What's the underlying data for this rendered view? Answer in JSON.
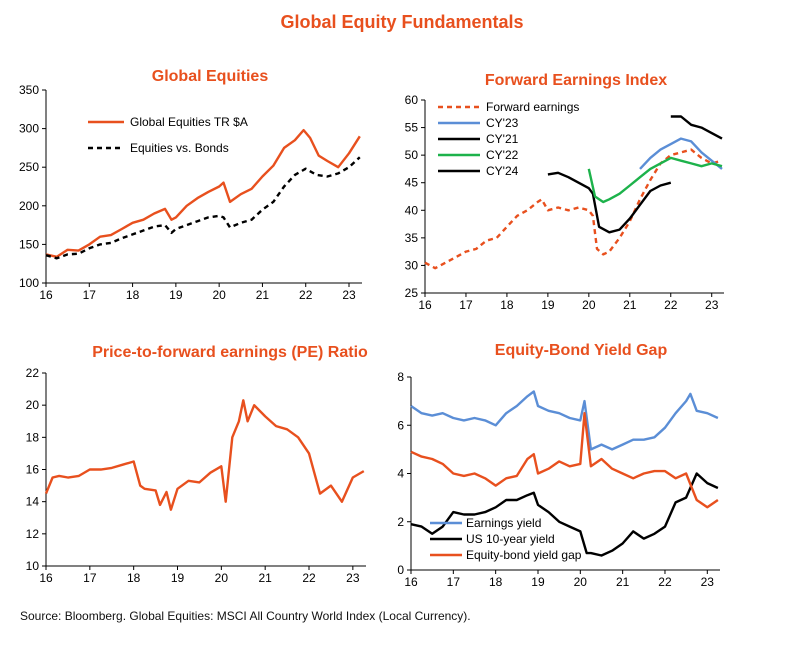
{
  "page": {
    "title": "Global Equity Fundamentals",
    "source": "Source: Bloomberg. Global Equities: MSCI All Country World Index (Local Currency)."
  },
  "colors": {
    "orange": "#E8501E",
    "black": "#000000",
    "blue": "#5B8ED6",
    "green": "#1DB24B"
  },
  "chart_data": [
    {
      "type": "line",
      "title": "Global Equities",
      "xlabel": "",
      "ylabel": "",
      "xlim": [
        2016,
        2023.3
      ],
      "ylim": [
        100,
        350
      ],
      "xticks": [
        16,
        17,
        18,
        19,
        20,
        21,
        22,
        23
      ],
      "yticks": [
        100,
        150,
        200,
        250,
        300,
        350
      ],
      "grid": false,
      "legend": "top-left",
      "series": [
        {
          "name": "Global Equities TR $A",
          "color": "#E8501E",
          "style": "solid",
          "x": [
            2016.0,
            2016.25,
            2016.5,
            2016.75,
            2017.0,
            2017.25,
            2017.5,
            2017.75,
            2018.0,
            2018.25,
            2018.5,
            2018.75,
            2018.9,
            2019.0,
            2019.25,
            2019.5,
            2019.75,
            2020.0,
            2020.1,
            2020.25,
            2020.5,
            2020.75,
            2021.0,
            2021.25,
            2021.5,
            2021.75,
            2021.95,
            2022.1,
            2022.3,
            2022.5,
            2022.75,
            2023.0,
            2023.25
          ],
          "y": [
            137,
            134,
            143,
            142,
            150,
            160,
            162,
            170,
            178,
            182,
            190,
            196,
            182,
            185,
            200,
            210,
            218,
            225,
            230,
            205,
            215,
            222,
            238,
            252,
            275,
            285,
            298,
            288,
            265,
            258,
            250,
            268,
            290
          ]
        },
        {
          "name": "Equities vs. Bonds",
          "color": "#000000",
          "style": "dashed",
          "x": [
            2016.0,
            2016.25,
            2016.5,
            2016.75,
            2017.0,
            2017.25,
            2017.5,
            2017.75,
            2018.0,
            2018.25,
            2018.5,
            2018.75,
            2018.9,
            2019.0,
            2019.25,
            2019.5,
            2019.75,
            2020.0,
            2020.1,
            2020.25,
            2020.5,
            2020.75,
            2021.0,
            2021.25,
            2021.5,
            2021.75,
            2022.0,
            2022.25,
            2022.5,
            2022.75,
            2023.0,
            2023.25
          ],
          "y": [
            136,
            132,
            137,
            138,
            145,
            150,
            152,
            158,
            163,
            168,
            173,
            175,
            165,
            170,
            175,
            180,
            185,
            187,
            185,
            172,
            178,
            182,
            195,
            205,
            225,
            240,
            248,
            240,
            238,
            242,
            250,
            263
          ]
        }
      ]
    },
    {
      "type": "line",
      "title": "Forward Earnings Index",
      "xlabel": "",
      "ylabel": "",
      "xlim": [
        2016,
        2023.3
      ],
      "ylim": [
        25,
        60
      ],
      "xticks": [
        16,
        17,
        18,
        19,
        20,
        21,
        22,
        23
      ],
      "yticks": [
        25,
        30,
        35,
        40,
        45,
        50,
        55,
        60
      ],
      "grid": false,
      "legend": "top-left",
      "series": [
        {
          "name": "Forward earnings",
          "color": "#E8501E",
          "style": "dashed",
          "x": [
            2016.0,
            2016.25,
            2016.5,
            2016.75,
            2017.0,
            2017.25,
            2017.5,
            2017.75,
            2018.0,
            2018.25,
            2018.5,
            2018.75,
            2018.85,
            2019.0,
            2019.25,
            2019.5,
            2019.75,
            2020.0,
            2020.1,
            2020.2,
            2020.35,
            2020.5,
            2020.75,
            2021.0,
            2021.25,
            2021.5,
            2021.75,
            2022.0,
            2022.25,
            2022.5,
            2022.75,
            2023.0,
            2023.25
          ],
          "y": [
            30.5,
            29.5,
            30.5,
            31.5,
            32.5,
            33.0,
            34.5,
            35.0,
            37.0,
            39.0,
            40.0,
            41.5,
            42.0,
            40.0,
            40.5,
            40.0,
            40.5,
            40.0,
            39.0,
            33.0,
            32.0,
            32.5,
            35.0,
            38.0,
            42.0,
            45.5,
            48.5,
            50.0,
            50.5,
            51.0,
            49.5,
            48.5,
            49.0
          ]
        },
        {
          "name": "CY'23",
          "color": "#5B8ED6",
          "style": "solid",
          "x": [
            2021.25,
            2021.5,
            2021.75,
            2022.0,
            2022.25,
            2022.5,
            2022.75,
            2023.0,
            2023.25
          ],
          "y": [
            47.5,
            49.5,
            51.0,
            52.0,
            53.0,
            52.5,
            50.5,
            49.0,
            47.5
          ]
        },
        {
          "name": "CY'21",
          "color": "#000000",
          "style": "solid",
          "x": [
            2019.0,
            2019.25,
            2019.5,
            2019.75,
            2020.0,
            2020.1,
            2020.25,
            2020.5,
            2020.75,
            2021.0,
            2021.25,
            2021.5,
            2021.75,
            2022.0
          ],
          "y": [
            46.5,
            46.8,
            46.0,
            45.0,
            44.0,
            43.0,
            37.0,
            36.0,
            36.5,
            38.5,
            41.0,
            43.5,
            44.5,
            45.0
          ]
        },
        {
          "name": "CY'22",
          "color": "#1DB24B",
          "style": "solid",
          "x": [
            2020.0,
            2020.15,
            2020.35,
            2020.5,
            2020.75,
            2021.0,
            2021.25,
            2021.5,
            2021.75,
            2022.0,
            2022.25,
            2022.5,
            2022.75,
            2023.0,
            2023.25
          ],
          "y": [
            47.5,
            42.5,
            41.5,
            42.0,
            43.0,
            44.5,
            46.0,
            47.5,
            48.5,
            49.5,
            49.0,
            48.5,
            48.0,
            48.5,
            48.0
          ]
        },
        {
          "name": "CY'24",
          "color": "#000000",
          "style": "solid",
          "x": [
            2022.0,
            2022.25,
            2022.5,
            2022.75,
            2023.0,
            2023.25
          ],
          "y": [
            57.0,
            57.0,
            55.5,
            55.0,
            54.0,
            53.0
          ]
        }
      ]
    },
    {
      "type": "line",
      "title": "Price-to-forward earnings (PE) Ratio",
      "xlabel": "",
      "ylabel": "",
      "xlim": [
        2016,
        2023.3
      ],
      "ylim": [
        10,
        22
      ],
      "xticks": [
        16,
        17,
        18,
        19,
        20,
        21,
        22,
        23
      ],
      "yticks": [
        10,
        12,
        14,
        16,
        18,
        20,
        22
      ],
      "grid": false,
      "legend": "none",
      "series": [
        {
          "name": "",
          "color": "#E8501E",
          "style": "solid",
          "x": [
            2016.0,
            2016.15,
            2016.3,
            2016.5,
            2016.75,
            2017.0,
            2017.25,
            2017.5,
            2017.75,
            2018.0,
            2018.15,
            2018.25,
            2018.5,
            2018.6,
            2018.75,
            2018.85,
            2019.0,
            2019.25,
            2019.5,
            2019.75,
            2020.0,
            2020.1,
            2020.25,
            2020.4,
            2020.5,
            2020.6,
            2020.75,
            2021.0,
            2021.25,
            2021.5,
            2021.75,
            2022.0,
            2022.25,
            2022.5,
            2022.75,
            2023.0,
            2023.25
          ],
          "y": [
            14.5,
            15.5,
            15.6,
            15.5,
            15.6,
            16.0,
            16.0,
            16.1,
            16.3,
            16.5,
            15.0,
            14.8,
            14.7,
            13.8,
            14.6,
            13.5,
            14.8,
            15.3,
            15.2,
            15.8,
            16.2,
            14.0,
            18.0,
            19.0,
            20.3,
            19.0,
            20.0,
            19.3,
            18.7,
            18.5,
            18.0,
            17.0,
            14.5,
            15.0,
            14.0,
            15.5,
            15.9
          ]
        }
      ]
    },
    {
      "type": "line",
      "title": "Equity-Bond Yield Gap",
      "xlabel": "",
      "ylabel": "",
      "xlim": [
        2016,
        2023.3
      ],
      "ylim": [
        0,
        8
      ],
      "xticks": [
        16,
        17,
        18,
        19,
        20,
        21,
        22,
        23
      ],
      "yticks": [
        0,
        2,
        4,
        6,
        8
      ],
      "grid": false,
      "legend": "bottom-left",
      "series": [
        {
          "name": "Earnings yield",
          "color": "#5B8ED6",
          "style": "solid",
          "x": [
            2016.0,
            2016.25,
            2016.5,
            2016.75,
            2017.0,
            2017.25,
            2017.5,
            2017.75,
            2018.0,
            2018.25,
            2018.5,
            2018.75,
            2018.9,
            2019.0,
            2019.25,
            2019.5,
            2019.75,
            2020.0,
            2020.1,
            2020.25,
            2020.5,
            2020.75,
            2021.0,
            2021.25,
            2021.5,
            2021.75,
            2022.0,
            2022.25,
            2022.5,
            2022.6,
            2022.75,
            2023.0,
            2023.25
          ],
          "y": [
            6.8,
            6.5,
            6.4,
            6.5,
            6.3,
            6.2,
            6.3,
            6.2,
            6.0,
            6.5,
            6.8,
            7.2,
            7.4,
            6.8,
            6.6,
            6.5,
            6.3,
            6.2,
            7.0,
            5.0,
            5.2,
            5.0,
            5.2,
            5.4,
            5.4,
            5.5,
            5.9,
            6.5,
            7.0,
            7.3,
            6.6,
            6.5,
            6.3
          ]
        },
        {
          "name": "US 10-year yield",
          "color": "#000000",
          "style": "solid",
          "x": [
            2016.0,
            2016.25,
            2016.5,
            2016.75,
            2017.0,
            2017.25,
            2017.5,
            2017.75,
            2018.0,
            2018.25,
            2018.5,
            2018.75,
            2018.9,
            2019.0,
            2019.25,
            2019.5,
            2019.75,
            2020.0,
            2020.15,
            2020.25,
            2020.5,
            2020.75,
            2021.0,
            2021.25,
            2021.5,
            2021.75,
            2022.0,
            2022.25,
            2022.5,
            2022.75,
            2023.0,
            2023.25
          ],
          "y": [
            1.9,
            1.8,
            1.5,
            1.8,
            2.4,
            2.3,
            2.3,
            2.4,
            2.6,
            2.9,
            2.9,
            3.1,
            3.2,
            2.7,
            2.4,
            2.0,
            1.8,
            1.6,
            0.7,
            0.7,
            0.6,
            0.8,
            1.1,
            1.6,
            1.3,
            1.5,
            1.8,
            2.8,
            3.0,
            4.0,
            3.6,
            3.4
          ]
        },
        {
          "name": "Equity-bond yield gap",
          "color": "#E8501E",
          "style": "solid",
          "x": [
            2016.0,
            2016.25,
            2016.5,
            2016.75,
            2017.0,
            2017.25,
            2017.5,
            2017.75,
            2018.0,
            2018.25,
            2018.5,
            2018.75,
            2018.9,
            2019.0,
            2019.25,
            2019.5,
            2019.75,
            2020.0,
            2020.1,
            2020.25,
            2020.5,
            2020.75,
            2021.0,
            2021.25,
            2021.5,
            2021.75,
            2022.0,
            2022.25,
            2022.5,
            2022.75,
            2023.0,
            2023.25
          ],
          "y": [
            4.9,
            4.7,
            4.6,
            4.4,
            4.0,
            3.9,
            4.0,
            3.8,
            3.5,
            3.8,
            3.9,
            4.6,
            4.8,
            4.0,
            4.2,
            4.5,
            4.3,
            4.4,
            6.5,
            4.3,
            4.6,
            4.2,
            4.0,
            3.8,
            4.0,
            4.1,
            4.1,
            3.8,
            4.0,
            2.9,
            2.6,
            2.9
          ]
        }
      ]
    }
  ]
}
